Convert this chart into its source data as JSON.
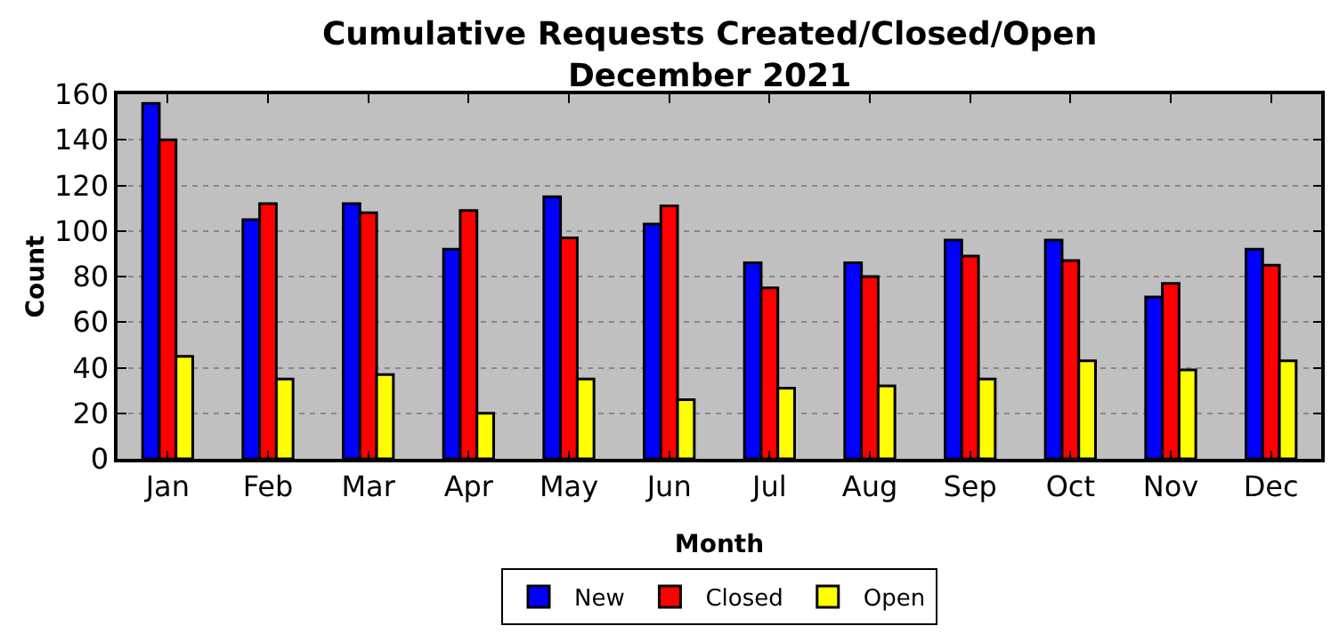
{
  "chart_data": {
    "type": "bar",
    "title": "Cumulative Requests Created/Closed/Open\nDecember 2021",
    "xlabel": "Month",
    "ylabel": "Count",
    "categories": [
      "Jan",
      "Feb",
      "Mar",
      "Apr",
      "May",
      "Jun",
      "Jul",
      "Aug",
      "Sep",
      "Oct",
      "Nov",
      "Dec"
    ],
    "series": [
      {
        "name": "New",
        "color": "#0000ff",
        "values": [
          156,
          105,
          112,
          92,
          115,
          103,
          86,
          86,
          96,
          96,
          71,
          92
        ]
      },
      {
        "name": "Closed",
        "color": "#ff0000",
        "values": [
          140,
          112,
          108,
          109,
          97,
          111,
          75,
          80,
          89,
          87,
          77,
          85
        ]
      },
      {
        "name": "Open",
        "color": "#ffff00",
        "values": [
          45,
          35,
          37,
          20,
          35,
          26,
          31,
          32,
          35,
          43,
          39,
          43
        ]
      }
    ],
    "ylim": [
      0,
      160
    ],
    "yticks": [
      0,
      20,
      40,
      60,
      80,
      100,
      120,
      140,
      160
    ],
    "grid": "y",
    "legend": "bottom"
  }
}
